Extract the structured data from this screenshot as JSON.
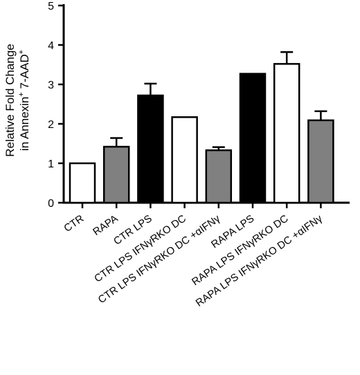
{
  "chart_data": {
    "type": "bar",
    "title": "",
    "xlabel": "",
    "ylabel_line1": "Relative Fold Change",
    "ylabel_line2_pre": "in Annexin",
    "ylabel_line2_sup1": "+",
    "ylabel_line2_mid": " 7-AAD",
    "ylabel_line2_sup2": "+",
    "ylim": [
      0,
      5
    ],
    "yticks": [
      "0",
      "1",
      "2",
      "3",
      "4",
      "5"
    ],
    "grid": false,
    "categories": [
      "CTR",
      "RAPA",
      "CTR LPS",
      "CTR LPS IFNγRKO DC",
      "CTR LPS IFNγRKO DC +αIFNγ",
      "RAPA LPS",
      "RAPA LPS IFNγRKO DC",
      "RAPA LPS IFNγRKO DC +αIFNγ"
    ],
    "values": [
      1.0,
      1.42,
      2.72,
      2.17,
      1.33,
      3.27,
      3.52,
      2.09
    ],
    "errors": [
      0.0,
      0.22,
      0.3,
      0.0,
      0.08,
      0.0,
      0.3,
      0.23
    ],
    "bar_colors": [
      "#ffffff",
      "#808080",
      "#000000",
      "#ffffff",
      "#808080",
      "#000000",
      "#ffffff",
      "#808080"
    ]
  }
}
